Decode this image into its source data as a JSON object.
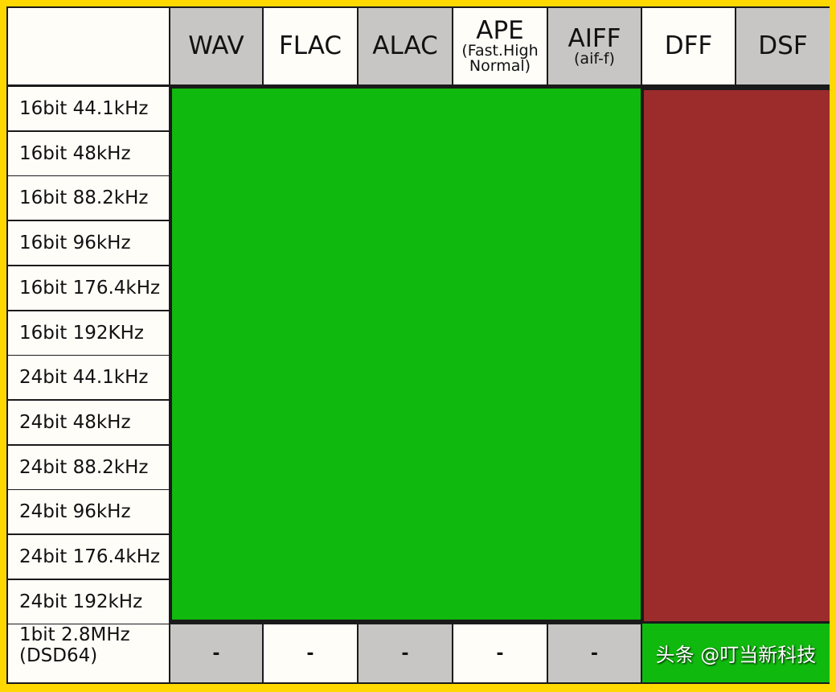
{
  "columns": [
    {
      "label": "WAV",
      "shade": "gray"
    },
    {
      "label": "FLAC",
      "shade": "white"
    },
    {
      "label": "ALAC",
      "shade": "gray"
    },
    {
      "label": "APE",
      "sub": "(Fast.High Normal)",
      "shade": "white"
    },
    {
      "label": "AIFF",
      "sub": "(aif-f)",
      "shade": "gray"
    },
    {
      "label": "DFF",
      "shade": "white"
    },
    {
      "label": "DSF",
      "shade": "gray"
    }
  ],
  "rows": [
    "16bit 44.1kHz",
    "16bit 48kHz",
    "16bit 88.2kHz",
    "16bit 96kHz",
    "16bit 176.4kHz",
    "16bit 192KHz",
    "24bit 44.1kHz",
    "24bit 48kHz",
    "24bit 88.2kHz",
    "24bit 96kHz",
    "24bit 176.4kHz",
    "24bit 192kHz"
  ],
  "pcm_support": {
    "WAV": "supported",
    "FLAC": "supported",
    "ALAC": "supported",
    "APE": "supported",
    "AIFF": "supported",
    "DFF": "not supported",
    "DSF": "not supported"
  },
  "dsd_row": {
    "label_line1": "1bit 2.8MHz",
    "label_line2": "(DSD64)",
    "values": [
      "-",
      "-",
      "-",
      "-",
      "-"
    ],
    "dff_dsf": "supported"
  },
  "colors": {
    "supported": "#10b90e",
    "not_supported": "#9c2b2c",
    "frame": "#ffd800"
  },
  "watermark": "头条 @叮当新科技"
}
